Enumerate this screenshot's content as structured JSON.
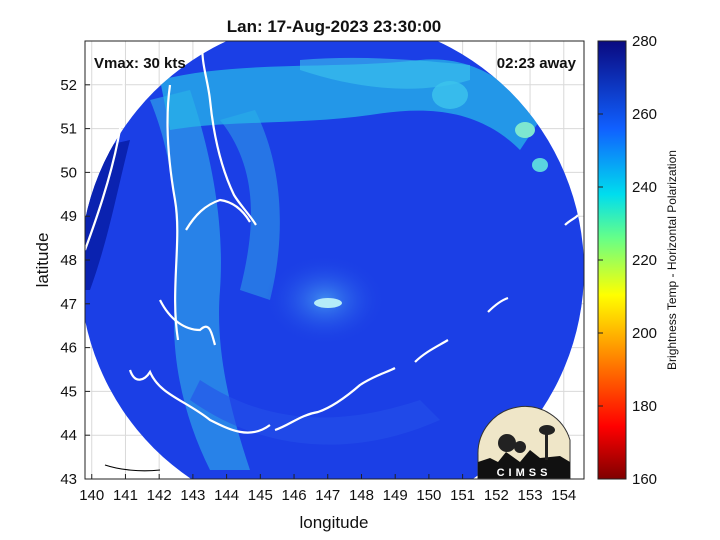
{
  "title": "Lan: 17-Aug-2023 23:30:00",
  "annotations": {
    "vmax": "Vmax: 30 kts",
    "away": "02:23 away"
  },
  "axes": {
    "xlabel": "longitude",
    "ylabel": "latitude",
    "x_ticks": [
      "140",
      "141",
      "142",
      "143",
      "144",
      "145",
      "146",
      "147",
      "148",
      "149",
      "150",
      "151",
      "152",
      "153",
      "154"
    ],
    "y_ticks": [
      "43",
      "44",
      "45",
      "46",
      "47",
      "48",
      "49",
      "50",
      "51",
      "52"
    ],
    "x_range": [
      139.8,
      154.6
    ],
    "y_range": [
      43,
      53
    ],
    "grid": true
  },
  "colorbar": {
    "label": "Brightness Temp - Horizontal Polarization",
    "ticks": [
      "160",
      "180",
      "200",
      "220",
      "240",
      "260",
      "280"
    ],
    "range": [
      160,
      280
    ]
  },
  "logo": {
    "text": "CIMSS"
  },
  "colors": {
    "background_blue": "#1b3fe6",
    "deep_blue": "#0a22b0",
    "cyan": "#27b5e8",
    "coast": "#ffffff"
  }
}
